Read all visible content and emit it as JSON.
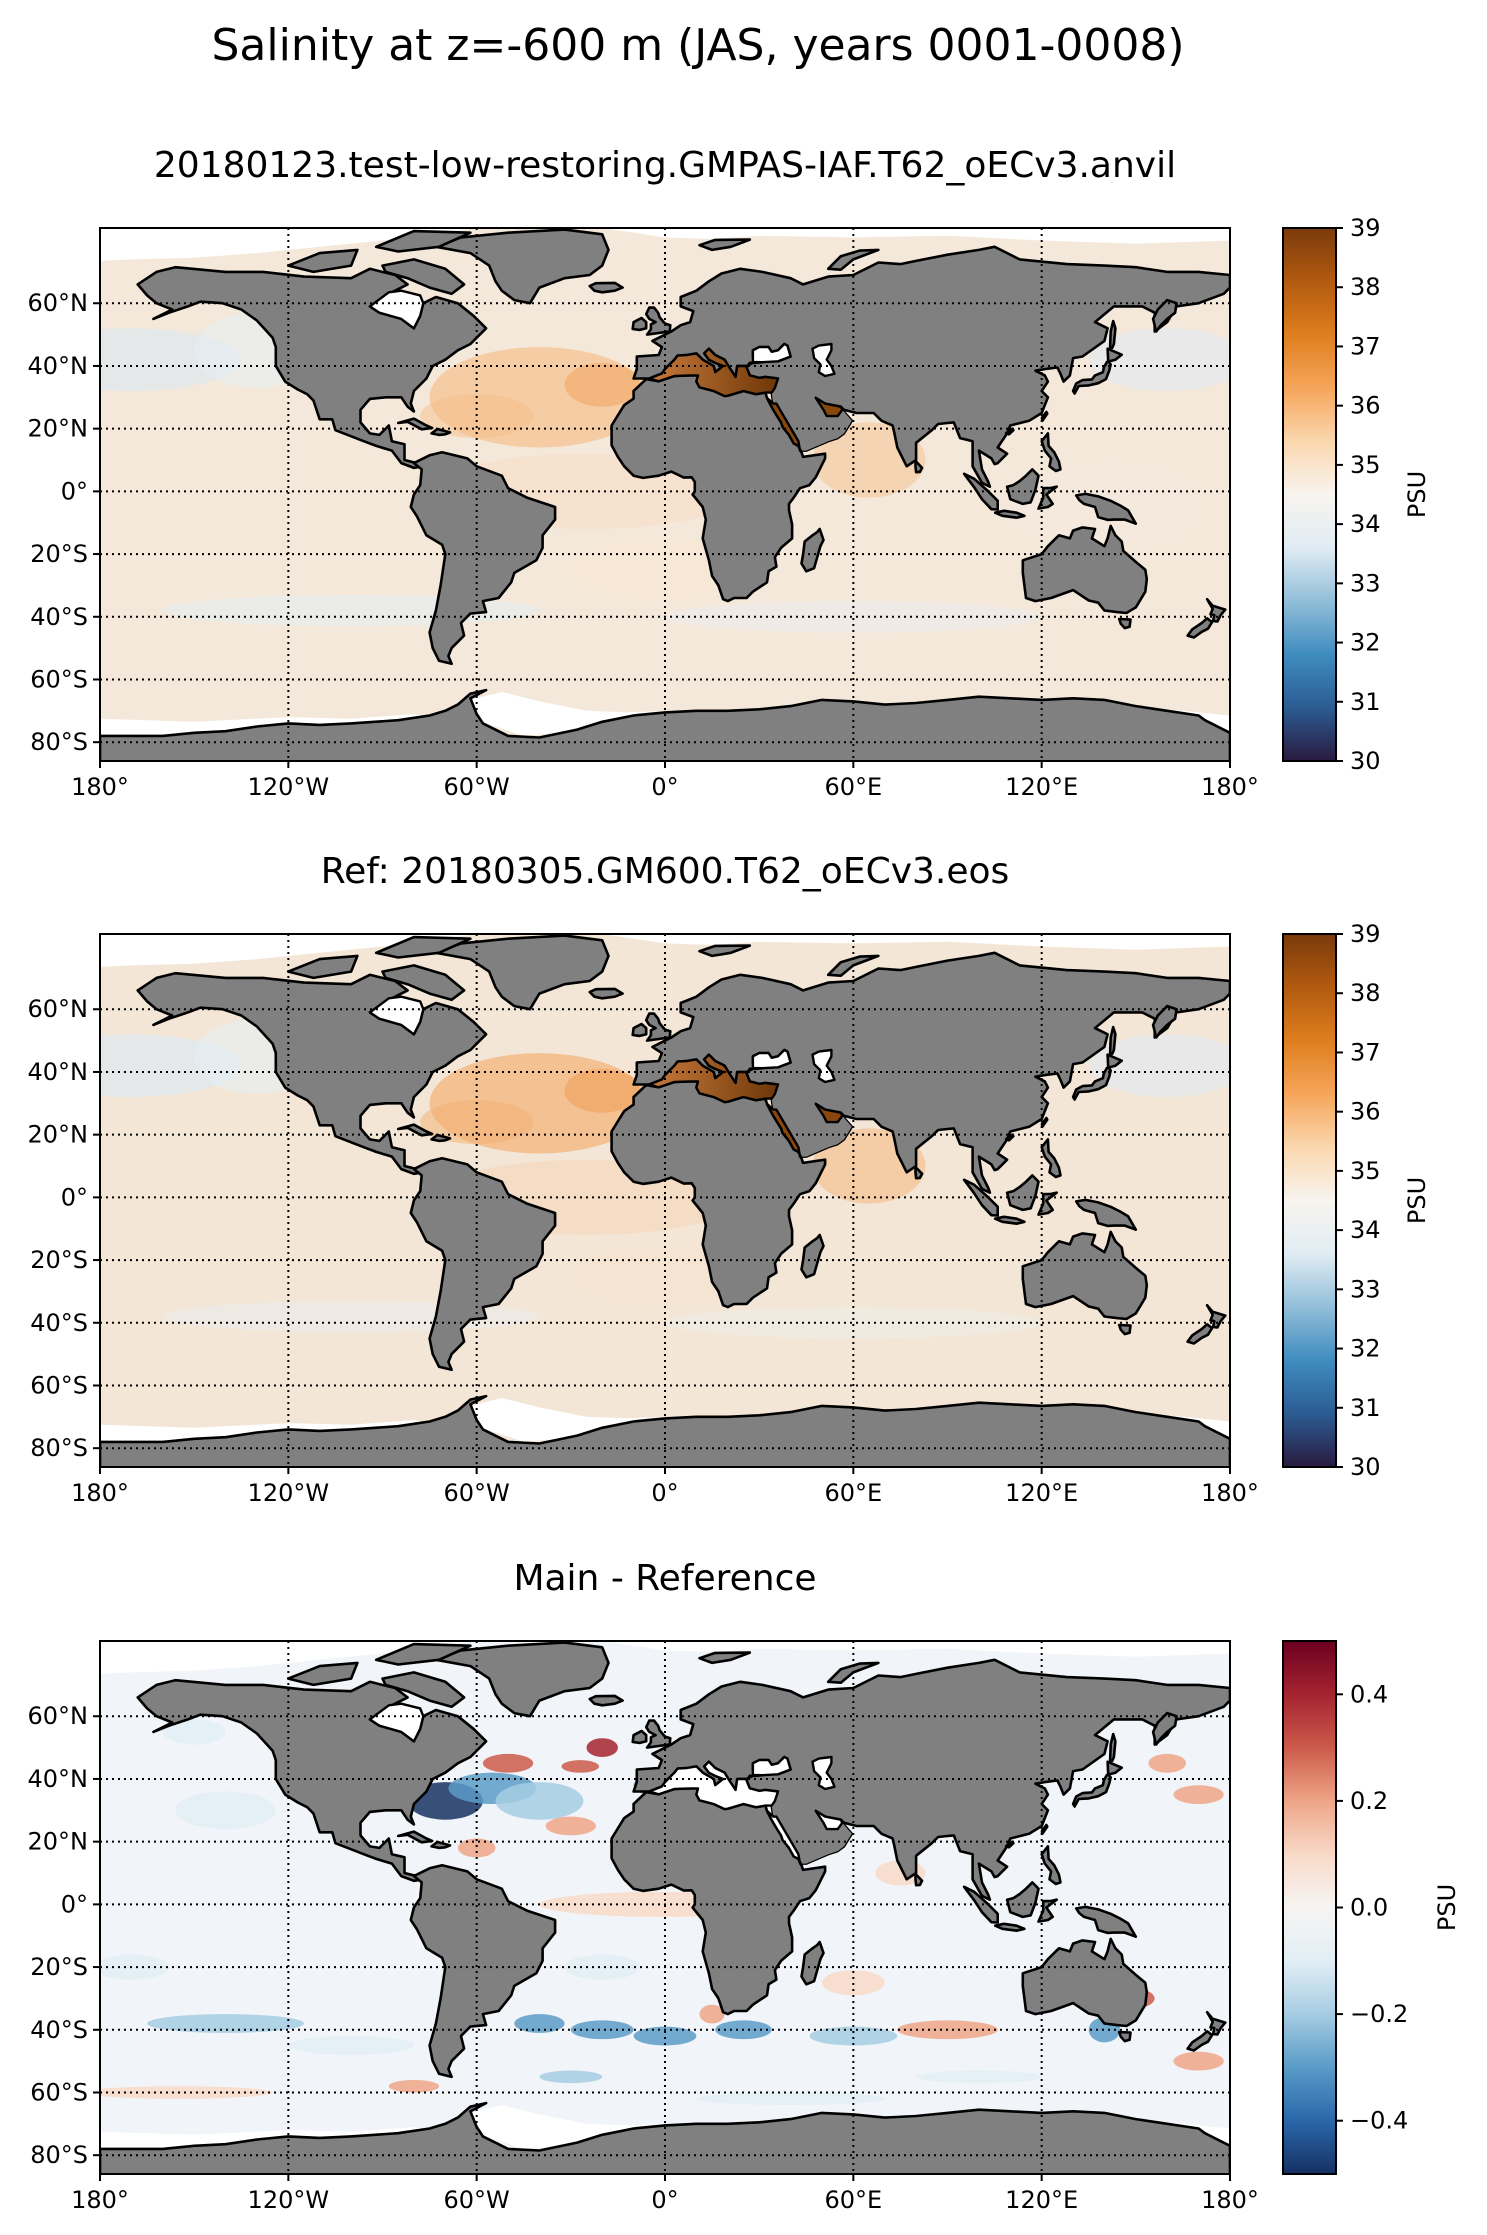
{
  "figure": {
    "suptitle": "Salinity at z=-600 m (JAS, years 0001-0008)"
  },
  "colors": {
    "land": "#808080",
    "coast": "#000000",
    "ice": "#ffffff",
    "ocean_main": "#f4e8da",
    "ocean_ref": "#f3e6d6",
    "ocean_diff": "#f1f4f8",
    "cmap_salinity": [
      "#2a1a3f",
      "#2b5c92",
      "#3f8cbf",
      "#92bed9",
      "#e0ecf3",
      "#f8f4ef",
      "#fbd7ae",
      "#f6a55a",
      "#de7e1e",
      "#b25a10",
      "#7a3a0b"
    ],
    "cmap_diff": [
      "#163163",
      "#2a67aa",
      "#5a9bc8",
      "#a6cce3",
      "#e2eef5",
      "#f6f4f2",
      "#f8d9c7",
      "#eea487",
      "#cc5a4b",
      "#a52330",
      "#6b0020"
    ]
  },
  "axes": {
    "lon_ticks": [
      "180°",
      "120°W",
      "60°W",
      "0°",
      "60°E",
      "120°E",
      "180°"
    ],
    "lat_ticks": [
      "60°N",
      "40°N",
      "20°N",
      "0°",
      "20°S",
      "40°S",
      "60°S",
      "80°S"
    ]
  },
  "panels": [
    {
      "title": "20180123.test-low-restoring.GMPAS-IAF.T62_oECv3.anvil",
      "colorbar": {
        "label": "PSU",
        "min": 30,
        "max": 39,
        "ticks": [
          "30",
          "31",
          "32",
          "33",
          "34",
          "35",
          "36",
          "37",
          "38",
          "39"
        ]
      }
    },
    {
      "title": "Ref: 20180305.GM600.T62_oECv3.eos",
      "colorbar": {
        "label": "PSU",
        "min": 30,
        "max": 39,
        "ticks": [
          "30",
          "31",
          "32",
          "33",
          "34",
          "35",
          "36",
          "37",
          "38",
          "39"
        ]
      }
    },
    {
      "title": "Main - Reference",
      "colorbar": {
        "label": "PSU",
        "min": -0.5,
        "max": 0.5,
        "ticks": [
          "−0.4",
          "−0.2",
          "0.0",
          "0.2",
          "0.4"
        ]
      }
    }
  ]
}
